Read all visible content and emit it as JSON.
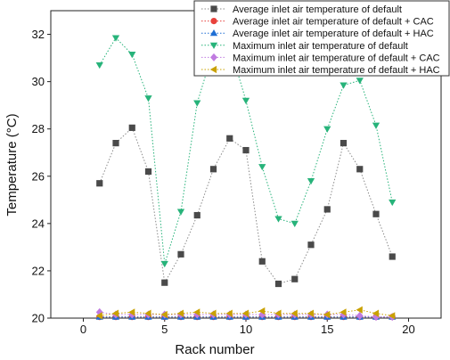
{
  "chart_data": {
    "type": "line",
    "title": "",
    "xlabel": "Rack number",
    "ylabel": "Temperature (°C)",
    "xlim": [
      -2,
      22
    ],
    "ylim": [
      20,
      33
    ],
    "x_ticks": [
      0,
      5,
      10,
      15,
      20
    ],
    "y_ticks": [
      20,
      22,
      24,
      26,
      28,
      30,
      32
    ],
    "grid": false,
    "legend_position": "top-right",
    "x": [
      1,
      2,
      3,
      4,
      5,
      6,
      7,
      8,
      9,
      10,
      11,
      12,
      13,
      14,
      15,
      16,
      17,
      18,
      19
    ],
    "series": [
      {
        "name": "Average inlet air temperature of default",
        "marker": "square",
        "color": "#4a4a4a",
        "line": "#8a8a8a",
        "values": [
          25.7,
          27.4,
          28.05,
          26.2,
          21.5,
          22.7,
          24.35,
          26.3,
          27.6,
          27.1,
          22.4,
          21.45,
          21.65,
          23.1,
          24.6,
          27.4,
          26.3,
          24.4,
          22.6
        ]
      },
      {
        "name": "Average inlet air temperature of default + CAC",
        "marker": "circle",
        "color": "#e8413c",
        "line": "#e8413c",
        "values": [
          20.05,
          20.05,
          20.05,
          20.05,
          20.05,
          20.05,
          20.05,
          20.05,
          20.05,
          20.05,
          20.05,
          20.05,
          20.05,
          20.05,
          20.05,
          20.05,
          20.05,
          20.05,
          20.05
        ]
      },
      {
        "name": "Average inlet air temperature of default + HAC",
        "marker": "triangle-up",
        "color": "#1f6fd4",
        "line": "#1f6fd4",
        "values": [
          20.05,
          20.05,
          20.05,
          20.05,
          20.05,
          20.05,
          20.05,
          20.05,
          20.05,
          20.05,
          20.05,
          20.05,
          20.05,
          20.05,
          20.05,
          20.05,
          20.05,
          20.05,
          20.05
        ]
      },
      {
        "name": "Maximum inlet air temperature of default",
        "marker": "triangle-down",
        "color": "#27b37a",
        "line": "#27b37a",
        "values": [
          30.7,
          31.85,
          31.15,
          29.3,
          22.3,
          24.5,
          29.1,
          31.35,
          31.5,
          29.2,
          26.4,
          24.2,
          24.0,
          25.8,
          28.0,
          29.85,
          30.05,
          28.15,
          24.9
        ]
      },
      {
        "name": "Maximum inlet air temperature of default + CAC",
        "marker": "diamond",
        "color": "#c07be0",
        "line": "#c07be0",
        "values": [
          20.25,
          20.15,
          20.15,
          20.15,
          20.15,
          20.15,
          20.15,
          20.15,
          20.15,
          20.15,
          20.15,
          20.15,
          20.15,
          20.15,
          20.15,
          20.15,
          20.1,
          20.05,
          20.05
        ]
      },
      {
        "name": "Maximum inlet air temperature of default + HAC",
        "marker": "triangle-left",
        "color": "#c9a100",
        "line": "#c9a100",
        "values": [
          20.1,
          20.2,
          20.25,
          20.2,
          20.15,
          20.2,
          20.25,
          20.2,
          20.2,
          20.2,
          20.3,
          20.2,
          20.2,
          20.2,
          20.15,
          20.25,
          20.35,
          20.2,
          20.1
        ]
      }
    ]
  }
}
